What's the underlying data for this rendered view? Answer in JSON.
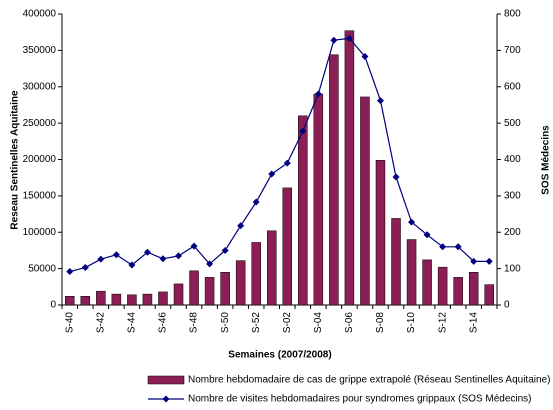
{
  "chart_data": {
    "type": "combo",
    "xlabel": "Semaines (2007/2008)",
    "ylabel": "Reseau Sentinelles Aquitaine",
    "y2label": "SOS Médecins",
    "categories": [
      "S-40",
      null,
      "S-42",
      null,
      "S-44",
      null,
      "S-46",
      null,
      "S-48",
      null,
      "S-50",
      null,
      "S-52",
      null,
      "S-02",
      null,
      "S-04",
      null,
      "S-06",
      null,
      "S-08",
      null,
      "S-10",
      null,
      "S-12",
      null,
      "S-14",
      null
    ],
    "series": [
      {
        "name": "Nombre hebdomadaire de cas de grippe extrapolé (Réseau Sentinelles Aquitaine)",
        "type": "bar",
        "color": "#8b1f55",
        "values": [
          12000,
          12000,
          19000,
          15000,
          14000,
          15000,
          18000,
          29000,
          47000,
          38000,
          45000,
          61000,
          86000,
          102000,
          161000,
          260000,
          290000,
          344000,
          377000,
          286000,
          199000,
          119000,
          90000,
          62000,
          52000,
          38000,
          45000,
          28000
        ]
      },
      {
        "name": "Nombre de visites hebdomadaires pour syndromes grippaux (SOS Médecins)",
        "type": "line",
        "axis": "y2",
        "color": "#000080",
        "values": [
          92,
          103,
          126,
          138,
          110,
          145,
          127,
          135,
          162,
          113,
          150,
          218,
          283,
          360,
          390,
          478,
          580,
          728,
          733,
          683,
          562,
          352,
          228,
          193,
          160,
          160,
          120,
          120
        ]
      }
    ],
    "ylim": [
      0,
      400000
    ],
    "yticks": [
      0,
      50000,
      100000,
      150000,
      200000,
      250000,
      300000,
      350000,
      400000
    ],
    "y2lim": [
      0,
      800
    ],
    "y2ticks": [
      0,
      100,
      200,
      300,
      400,
      500,
      600,
      700,
      800
    ],
    "grid": false
  }
}
